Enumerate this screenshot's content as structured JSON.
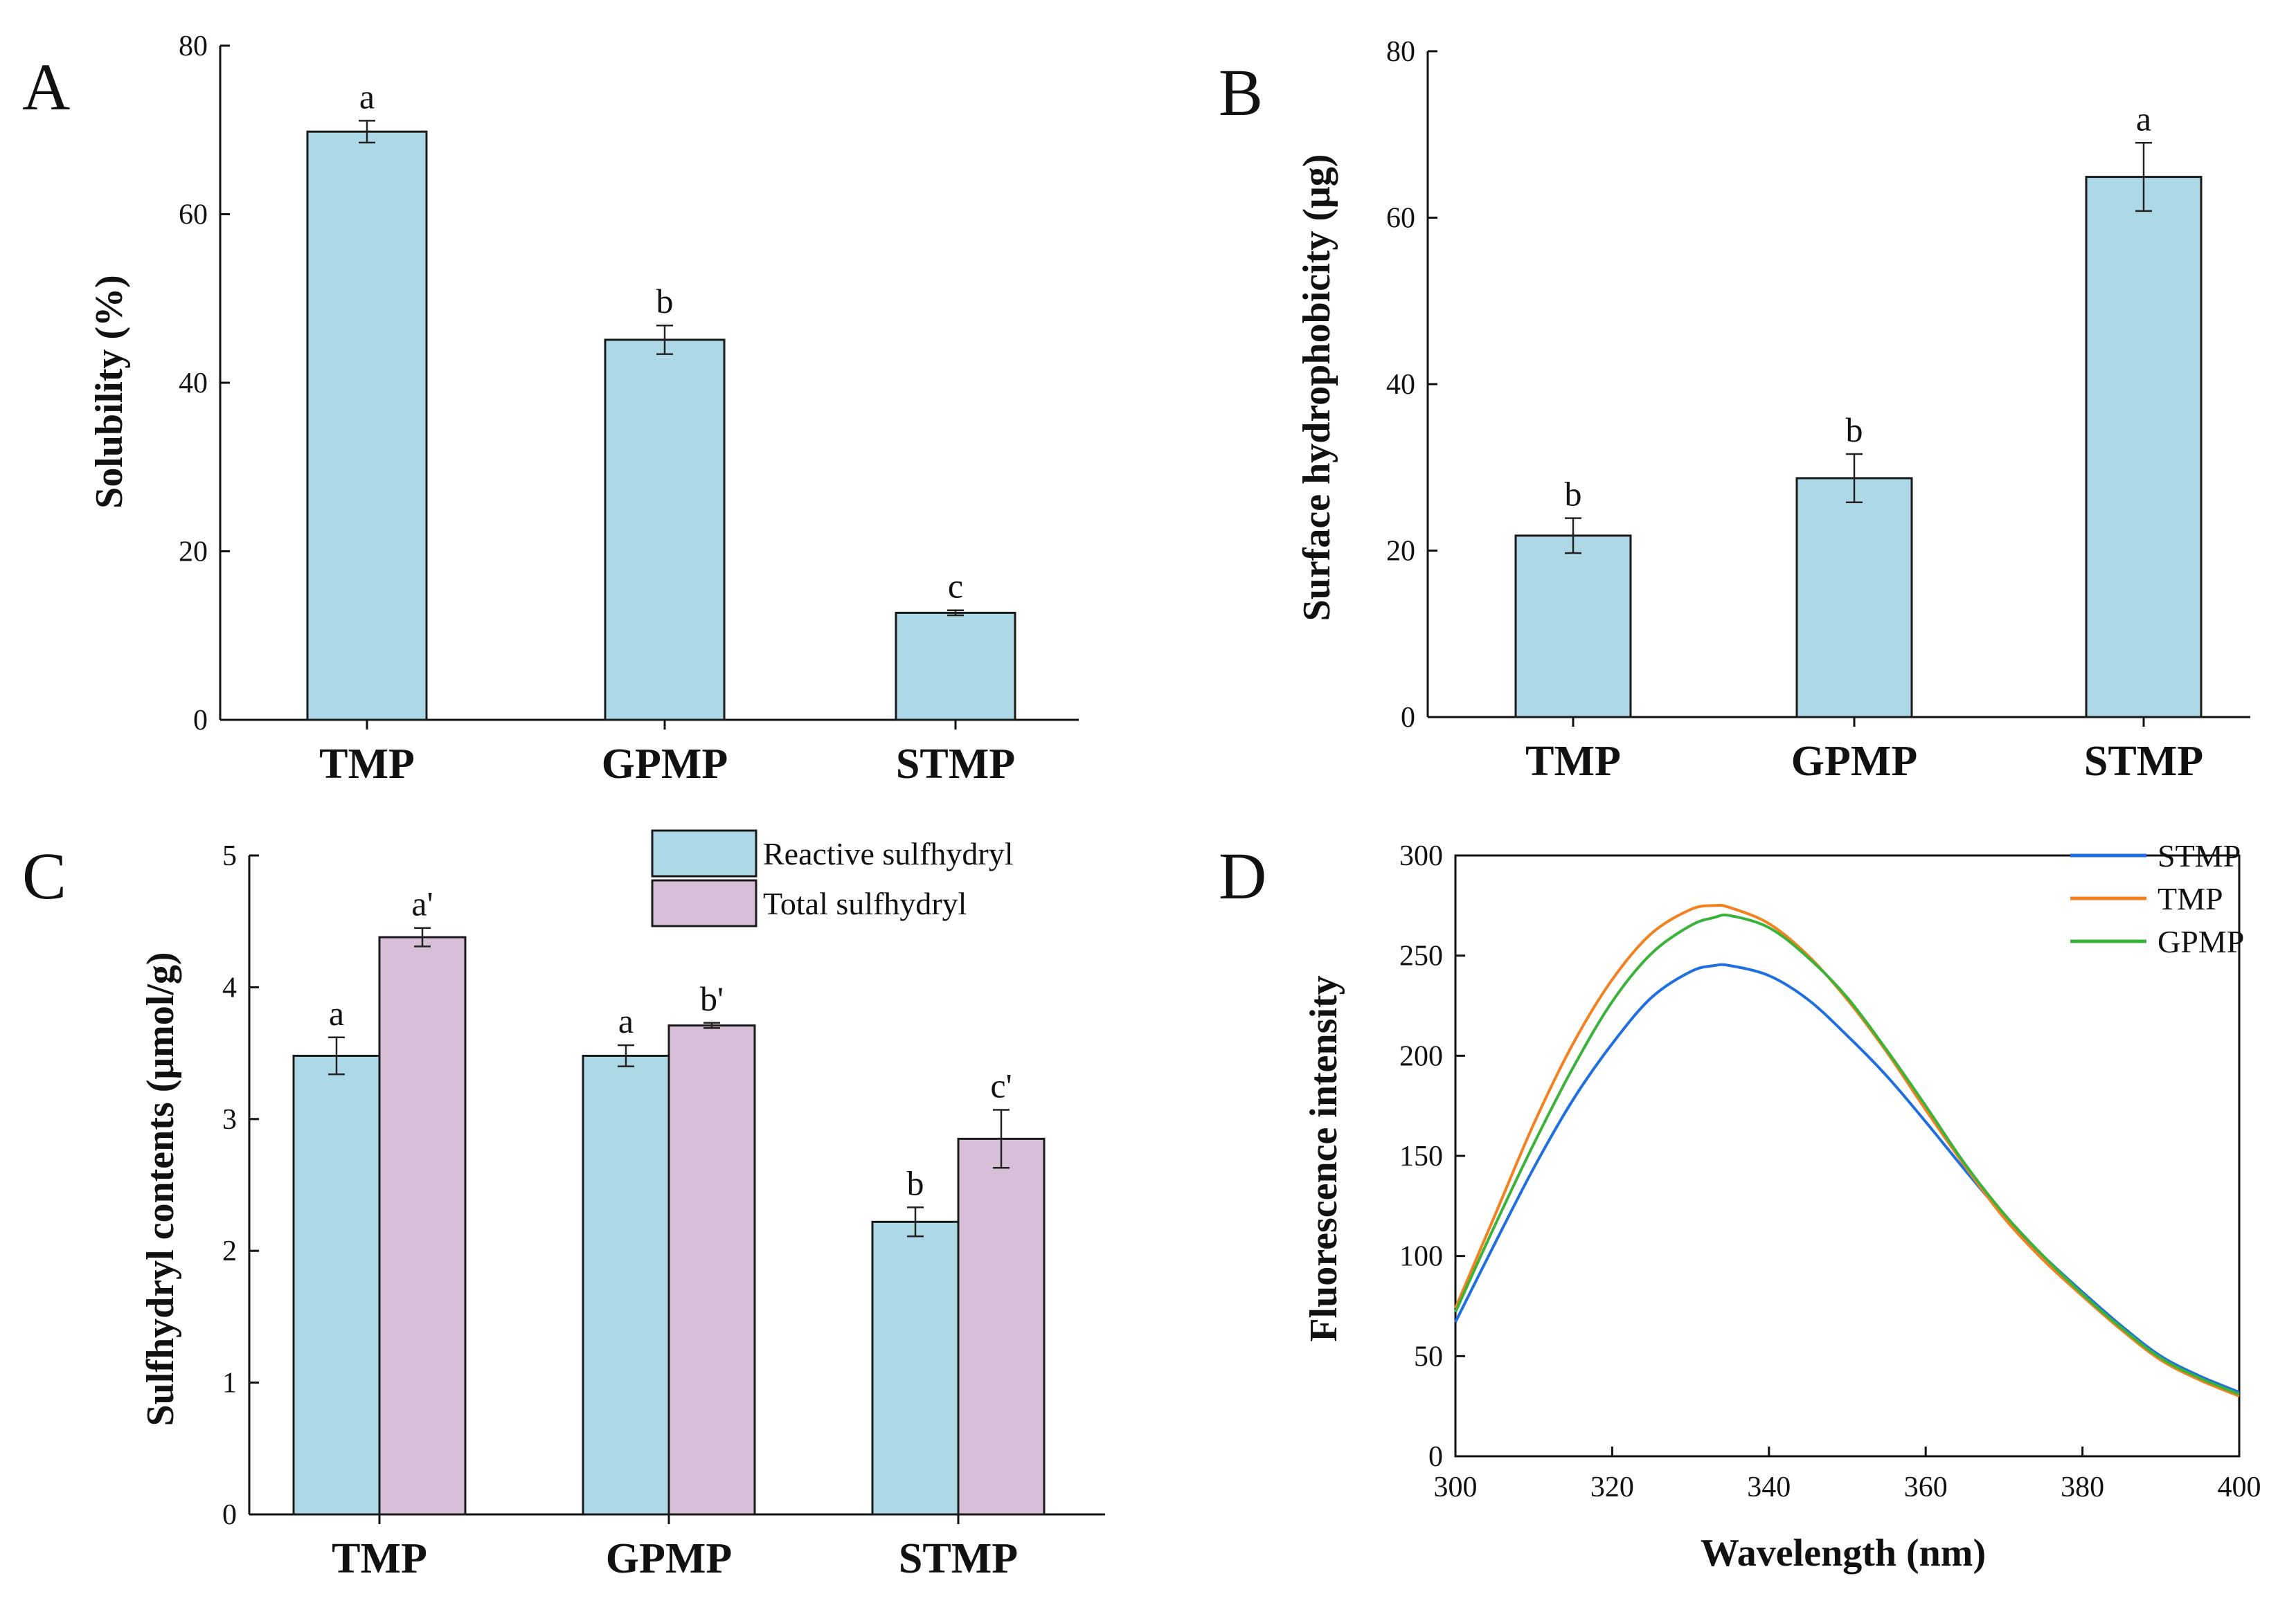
{
  "chart_data": [
    {
      "panel": "A",
      "type": "bar",
      "categories": [
        "TMP",
        "GPMP",
        "STMP"
      ],
      "values": [
        69.8,
        45.1,
        12.7
      ],
      "errors": [
        1.3,
        1.7,
        0.3
      ],
      "significance": [
        "a",
        "b",
        "c"
      ],
      "xlabel": "",
      "ylabel": "Solubility (%)",
      "ylim": [
        0,
        80
      ],
      "yticks": [
        0,
        20,
        40,
        60,
        80
      ],
      "color": "#ADD8E6"
    },
    {
      "panel": "B",
      "type": "bar",
      "categories": [
        "TMP",
        "GPMP",
        "STMP"
      ],
      "values": [
        21.8,
        28.7,
        64.9
      ],
      "errors": [
        2.1,
        2.9,
        4.1
      ],
      "significance": [
        "b",
        "b",
        "a"
      ],
      "xlabel": "",
      "ylabel": "Surface hydrophobicity (μg)",
      "ylim": [
        0,
        80
      ],
      "yticks": [
        0,
        20,
        40,
        60,
        80
      ],
      "color": "#ADD8E6"
    },
    {
      "panel": "C",
      "type": "bar",
      "categories": [
        "TMP",
        "GPMP",
        "STMP"
      ],
      "series": [
        {
          "name": "Reactive sulfhydryl",
          "values": [
            3.48,
            3.48,
            2.22
          ],
          "errors": [
            0.14,
            0.08,
            0.11
          ],
          "significance": [
            "a",
            "a",
            "b"
          ],
          "color": "#ADD8E6"
        },
        {
          "name": "Total sulfhydryl",
          "values": [
            4.38,
            3.71,
            2.85
          ],
          "errors": [
            0.07,
            0.02,
            0.22
          ],
          "significance": [
            "a'",
            "b'",
            "c'"
          ],
          "color": "#D8BFD8"
        }
      ],
      "xlabel": "",
      "ylabel": "Sulfhydryl contents (μmol/g)",
      "ylim": [
        0,
        5
      ],
      "yticks": [
        0,
        1,
        2,
        3,
        4,
        5
      ],
      "legend_position": "top-right"
    },
    {
      "panel": "D",
      "type": "line",
      "xlabel": "Wavelength (nm)",
      "ylabel": "Fluorescence intensity",
      "xlim": [
        300,
        400
      ],
      "ylim": [
        0,
        300
      ],
      "xticks": [
        300,
        320,
        340,
        360,
        380,
        400
      ],
      "yticks": [
        0,
        50,
        100,
        150,
        200,
        250,
        300
      ],
      "legend_position": "top-right",
      "series": [
        {
          "name": "STMP",
          "color": "#1f6fe0",
          "x": [
            300,
            305,
            310,
            315,
            320,
            325,
            330,
            333,
            335,
            340,
            345,
            350,
            355,
            360,
            365,
            370,
            375,
            380,
            385,
            390,
            395,
            400
          ],
          "y": [
            67,
            106,
            144,
            178,
            206,
            229,
            242,
            245,
            245,
            240,
            228,
            210,
            190,
            167,
            143,
            120,
            100,
            82,
            65,
            50,
            40,
            32
          ]
        },
        {
          "name": "TMP",
          "color": "#f4811f",
          "x": [
            300,
            305,
            310,
            315,
            320,
            325,
            330,
            333,
            335,
            340,
            345,
            350,
            355,
            360,
            365,
            370,
            375,
            380,
            385,
            390,
            395,
            400
          ],
          "y": [
            74,
            120,
            166,
            206,
            238,
            261,
            273,
            275,
            274,
            266,
            250,
            228,
            202,
            173,
            145,
            119,
            98,
            80,
            63,
            48,
            38,
            30
          ]
        },
        {
          "name": "GPMP",
          "color": "#3bb33b",
          "x": [
            300,
            305,
            310,
            315,
            320,
            325,
            330,
            333,
            335,
            340,
            345,
            350,
            355,
            360,
            365,
            370,
            375,
            380,
            385,
            390,
            395,
            400
          ],
          "y": [
            72,
            115,
            156,
            194,
            227,
            251,
            265,
            269,
            270,
            264,
            249,
            229,
            203,
            175,
            146,
            121,
            100,
            81,
            64,
            49,
            39,
            31
          ]
        }
      ]
    }
  ],
  "panel_letters": [
    "A",
    "B",
    "C",
    "D"
  ]
}
